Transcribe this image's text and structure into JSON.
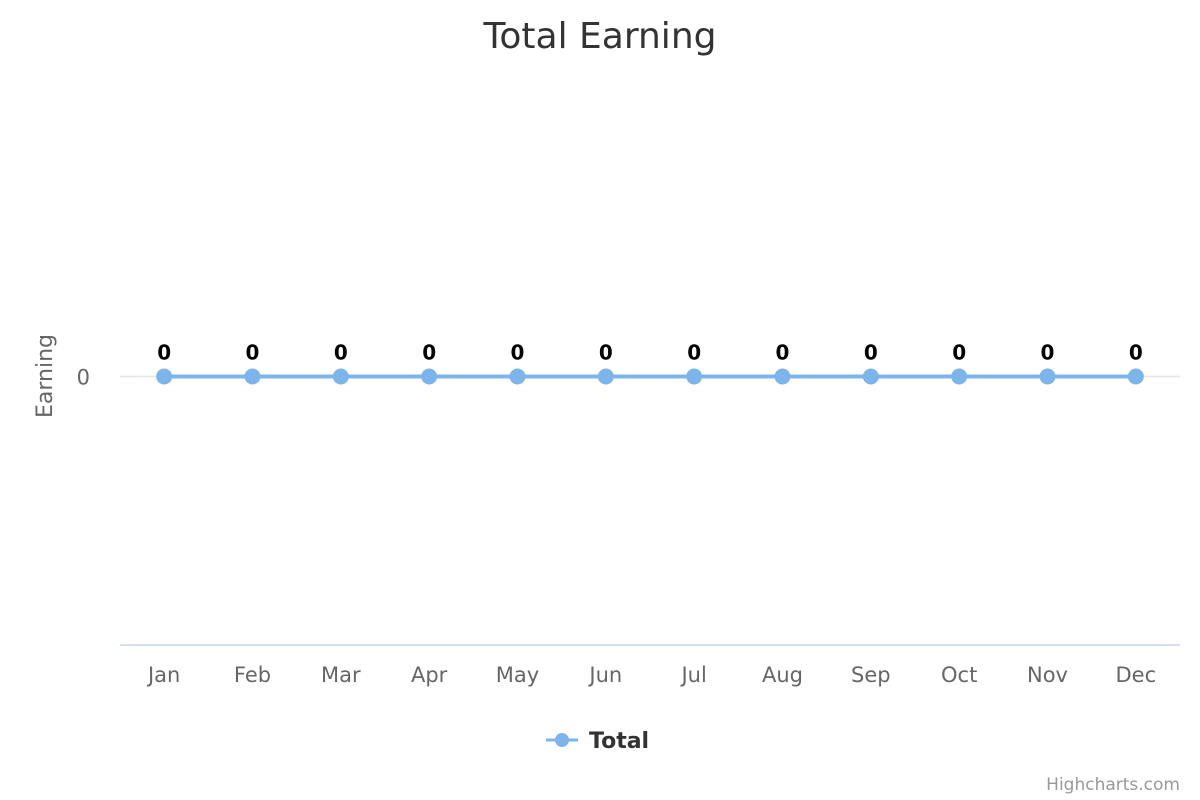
{
  "chart_data": {
    "type": "line",
    "title": "Total Earning",
    "xlabel": "",
    "ylabel": "Earning",
    "categories": [
      "Jan",
      "Feb",
      "Mar",
      "Apr",
      "May",
      "Jun",
      "Jul",
      "Aug",
      "Sep",
      "Oct",
      "Nov",
      "Dec"
    ],
    "series": [
      {
        "name": "Total",
        "color": "#7cb5ec",
        "values": [
          0,
          0,
          0,
          0,
          0,
          0,
          0,
          0,
          0,
          0,
          0,
          0
        ]
      }
    ],
    "yticks": [
      0
    ],
    "ylim": [
      -1,
      1
    ],
    "grid": true,
    "data_labels": true,
    "legend": "bottom-center"
  },
  "credits": "Highcharts.com"
}
